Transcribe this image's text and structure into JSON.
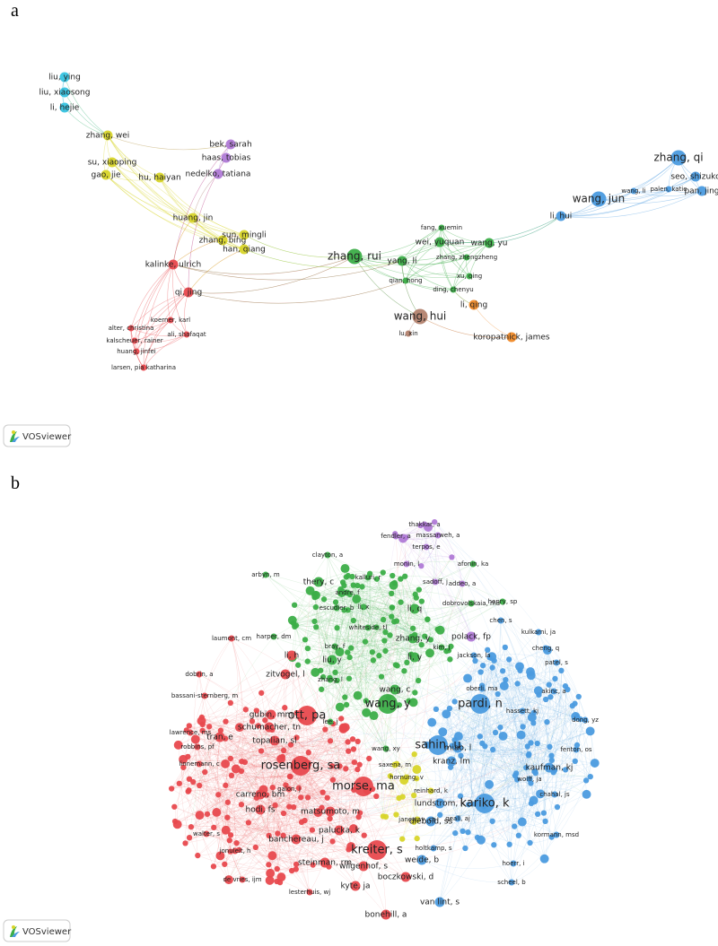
{
  "panels": [
    {
      "letter": "a",
      "logo": "VOSviewer",
      "clusters": [
        {
          "color": "#37c3e0",
          "nodes": [
            "liu, ying",
            "liu, xiaosong",
            "li, hejie"
          ]
        },
        {
          "color": "#d8d52a",
          "nodes": [
            "zhang, wei",
            "su, xiaoping",
            "gao, jie",
            "hu, haiyan",
            "huang, jin",
            "zhang, bing",
            "sun, mingli",
            "han, qiang"
          ]
        },
        {
          "color": "#b07ad6",
          "nodes": [
            "bek, sarah",
            "haas, tobias",
            "nedelko, tatiana"
          ]
        },
        {
          "color": "#e8494e",
          "nodes": [
            "kalinke, ulrich",
            "qi, jing",
            "alter, christina",
            "kalscheuer, rainer",
            "koerner, karl",
            "huang, jinfei",
            "ali, shafaqat",
            "larsen, pia katharina"
          ]
        },
        {
          "color": "#3cae48",
          "nodes": [
            "zhang, rui",
            "fang, xuemin",
            "wei, yuquan",
            "wang, yu",
            "yang, li",
            "zhang, zhengzheng",
            "xu, qing",
            "qian, hong",
            "ding, chenyu"
          ]
        },
        {
          "color": "#b3826e",
          "nodes": [
            "wang, hui",
            "lu, xin"
          ]
        },
        {
          "color": "#f08a28",
          "nodes": [
            "li, qing",
            "koropatnick, james"
          ]
        },
        {
          "color": "#4b9bdf",
          "nodes": [
            "li, hui",
            "wang, jun",
            "wang, li",
            "zhang, qi",
            "seo, shizuko",
            "palen, katie",
            "pan, jing"
          ]
        }
      ]
    },
    {
      "letter": "b",
      "logo": "VOSviewer",
      "clusters": [
        {
          "color": "#e8494e",
          "nodes": [
            "li, h",
            "zitvogel, l",
            "laumont, cm",
            "bassani-sternberg, m",
            "dobrin, a",
            "gubin, mm",
            "ott, pa",
            "lawrence, ms",
            "tran, e",
            "schumacher, tn",
            "topalian, sl",
            "robbins, pf",
            "rosenberg, sa",
            "linnemann, c",
            "carreno, bm",
            "galon, j",
            "hodi, fs",
            "matsumoto, m",
            "walter, s",
            "banchereau, j",
            "palucka, k",
            "jonuleit, h",
            "steinman, rm",
            "kreiter, s",
            "wilgenhof, s",
            "boczkowski, d",
            "de vries, ijm",
            "kyte, ja",
            "lesterhuis, wj",
            "bonehill, a",
            "morse, ma"
          ]
        },
        {
          "color": "#3cae48",
          "nodes": [
            "clayton, a",
            "arbyn, m",
            "kalluri, r",
            "thery, c",
            "andre, f",
            "escudier, b",
            "li, x",
            "li, q",
            "whiteside, tl",
            "harper, dm",
            "zhang, y",
            "bray, f",
            "kim, j",
            "liu, y",
            "li, y",
            "zhang, l",
            "wang, c",
            "wang, y",
            "lee, j",
            "wang, xy",
            "dobrovolskaia, ma",
            "henry, sp",
            "afonin, ka"
          ]
        },
        {
          "color": "#4b9bdf",
          "nodes": [
            "chen, s",
            "kulkarni, ja",
            "jackson, la",
            "cheng, q",
            "patel, s",
            "hassett, kj",
            "oberli, ma",
            "pardi, n",
            "akinc, a",
            "dong, yz",
            "sahin, u",
            "miao, l",
            "kranz, lm",
            "fenton, os",
            "kaufman, kj",
            "wolff, ja",
            "chahal, js",
            "kariko, k",
            "lundstrom, k",
            "geall, aj",
            "diebold, ss",
            "kormann, msd",
            "holtkamp, s",
            "weide, b",
            "hoerr, i",
            "scheel, b",
            "van lint, s"
          ]
        },
        {
          "color": "#d8d52a",
          "nodes": [
            "hornung, v",
            "reinhard, k",
            "saxena, m",
            "janeway, ca"
          ]
        },
        {
          "color": "#b07ad6",
          "nodes": [
            "thakkar, a",
            "massarweh, a",
            "fendler, a",
            "terpos, e",
            "monin, l",
            "sadoff, j",
            "addeo, a",
            "polack, fp"
          ]
        }
      ]
    }
  ]
}
